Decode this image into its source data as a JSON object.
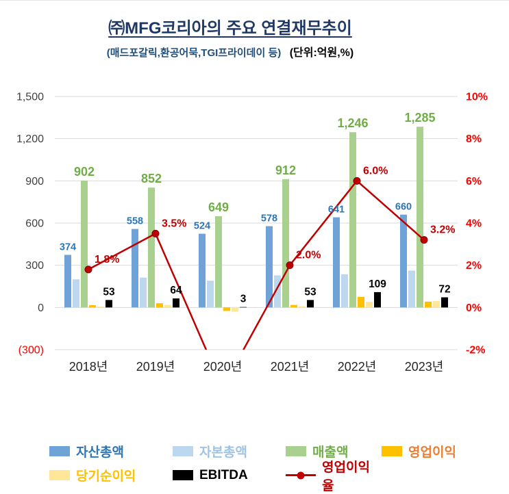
{
  "header": {
    "title": "㈜MFG코리아의 주요 연결재무추이",
    "subtitle_left": "(매드포갈릭,환공어묵,TGI프라이데이 등)",
    "subtitle_right": "(단위:억원,%)"
  },
  "chart_data": {
    "type": "bar",
    "note": "grouped bar chart with secondary-axis line series",
    "categories": [
      "2018년",
      "2019년",
      "2020년",
      "2021년",
      "2022년",
      "2023년"
    ],
    "left_axis": {
      "ticks": [
        "1,500",
        "1,200",
        "900",
        "600",
        "300",
        "0",
        "(300)"
      ],
      "max": 1500,
      "min": -300,
      "step": 300
    },
    "right_axis": {
      "ticks": [
        "10%",
        "8%",
        "6%",
        "4%",
        "2%",
        "0%",
        "-2%"
      ],
      "max": 10,
      "min": -2,
      "step": 2
    },
    "grid": true,
    "legend_position": "bottom",
    "series": [
      {
        "name": "자산총액",
        "type": "bar",
        "color": "#6FA3D8",
        "values": [
          374,
          558,
          524,
          578,
          641,
          660
        ],
        "labels": [
          "374",
          "558",
          "524",
          "578",
          "641",
          "660"
        ],
        "label_color": "#2E75B6",
        "label_size": 14.5
      },
      {
        "name": "자본총액",
        "type": "bar",
        "color": "#BDD7EE",
        "values": [
          200,
          212,
          190,
          228,
          236,
          262
        ]
      },
      {
        "name": "매출액",
        "type": "bar",
        "color": "#A9D08E",
        "values": [
          902,
          852,
          649,
          912,
          1246,
          1285
        ],
        "labels": [
          "902",
          "852",
          "649",
          "912",
          "1,246",
          "1,285"
        ],
        "label_color": "#70AD47",
        "label_size": 18
      },
      {
        "name": "영업이익",
        "type": "bar",
        "color": "#FFC000",
        "values": [
          16,
          30,
          -25,
          18,
          75,
          41
        ]
      },
      {
        "name": "당기순이익",
        "type": "bar",
        "color": "#FFE699",
        "values": [
          6,
          18,
          -30,
          8,
          40,
          45
        ]
      },
      {
        "name": "EBITDA",
        "type": "bar",
        "color": "#000000",
        "values": [
          53,
          64,
          3,
          53,
          109,
          72
        ],
        "labels": [
          "53",
          "64",
          "3",
          "53",
          "109",
          "72"
        ],
        "label_color": "#000000",
        "label_size": 15.5
      },
      {
        "name": "영업이익율",
        "type": "line",
        "axis": "right",
        "color": "#C00000",
        "values": [
          1.8,
          3.5,
          -3.8,
          2.0,
          6.0,
          3.2
        ],
        "labels": [
          "1.8%",
          "3.5%",
          "",
          "2.0%",
          "6.0%",
          "3.2%"
        ],
        "label_color": "#C00000",
        "label_size": 16
      }
    ],
    "axis_colors": {
      "left_tick": "#404040",
      "left_negative_tick": "#FF0000",
      "right_tick": "#FF0000",
      "category": "#262626",
      "gridline": "#D9D9D9"
    }
  },
  "legend": {
    "rows": [
      [
        {
          "label": "자산총액",
          "swatch": "#6FA3D8",
          "text_color": "#2E75B6",
          "kind": "rect"
        },
        {
          "label": "자본총액",
          "swatch": "#BDD7EE",
          "text_color": "#9DC3E6",
          "kind": "rect"
        },
        {
          "label": "매출액",
          "swatch": "#A9D08E",
          "text_color": "#70AD47",
          "kind": "rect"
        },
        {
          "label": "영업이익",
          "swatch": "#FFC000",
          "text_color": "#ED7D31",
          "kind": "rect"
        }
      ],
      [
        {
          "label": "당기순이익",
          "swatch": "#FFE699",
          "text_color": "#FFC000",
          "kind": "rect"
        },
        {
          "label": "EBITDA",
          "swatch": "#000000",
          "text_color": "#000000",
          "kind": "rect"
        },
        {
          "label": "영업이익율",
          "swatch": "#C00000",
          "text_color": "#C00000",
          "kind": "line"
        }
      ]
    ]
  }
}
